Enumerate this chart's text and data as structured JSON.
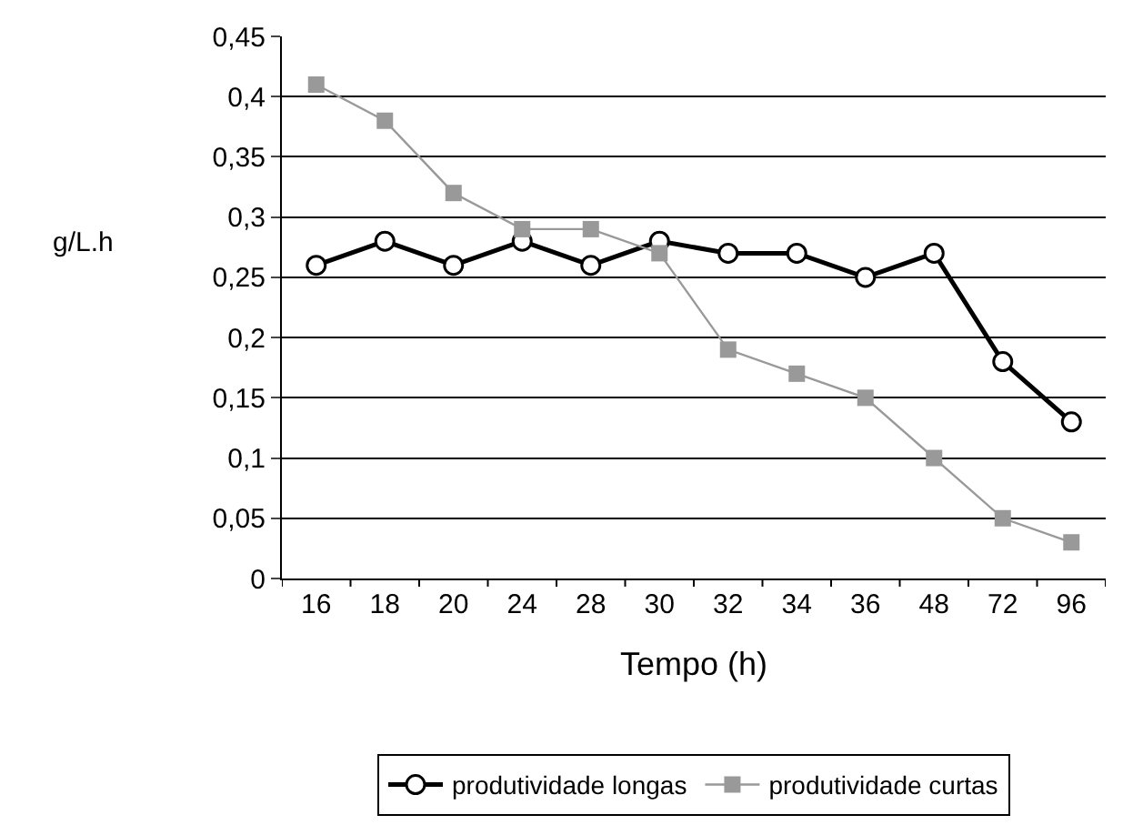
{
  "chart_data": {
    "type": "line",
    "xlabel": "Tempo (h)",
    "ylabel": "g/L.h",
    "categories": [
      "16",
      "18",
      "20",
      "24",
      "28",
      "30",
      "32",
      "34",
      "36",
      "48",
      "72",
      "96"
    ],
    "series": [
      {
        "name": "produtividade longas",
        "color": "#000000",
        "marker": "circle",
        "values": [
          0.26,
          0.28,
          0.26,
          0.28,
          0.26,
          0.28,
          0.27,
          0.27,
          0.25,
          0.27,
          0.18,
          0.13
        ]
      },
      {
        "name": "produtividade curtas",
        "color": "#999999",
        "marker": "square",
        "values": [
          0.41,
          0.38,
          0.32,
          0.29,
          0.29,
          0.27,
          0.19,
          0.17,
          0.15,
          0.1,
          0.05,
          0.03
        ]
      }
    ],
    "ylim": [
      0,
      0.45
    ],
    "yticks": [
      {
        "value": 0,
        "label": "0"
      },
      {
        "value": 0.05,
        "label": "0,05"
      },
      {
        "value": 0.1,
        "label": "0,1"
      },
      {
        "value": 0.15,
        "label": "0,15"
      },
      {
        "value": 0.2,
        "label": "0,2"
      },
      {
        "value": 0.25,
        "label": "0,25"
      },
      {
        "value": 0.3,
        "label": "0,3"
      },
      {
        "value": 0.35,
        "label": "0,35"
      },
      {
        "value": 0.4,
        "label": "0,4"
      },
      {
        "value": 0.45,
        "label": "0,45"
      }
    ],
    "grid": "y",
    "legend": "bottom",
    "line_style": "solid"
  }
}
